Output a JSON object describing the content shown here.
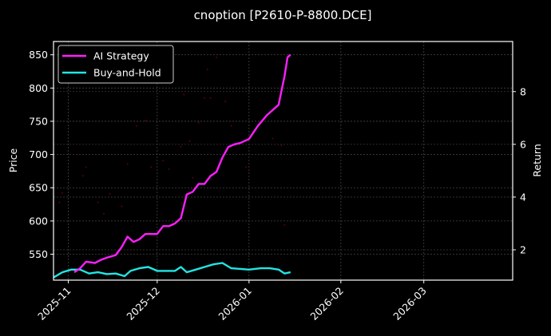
{
  "chart_data": {
    "type": "line",
    "title": "cnoption [P2610-P-8800.DCE]",
    "xlabel": "",
    "ylabel": "Price",
    "ylabel_right": "Return",
    "xlim": [
      "2025-10-27",
      "2026-03-31"
    ],
    "ylim": [
      511,
      870
    ],
    "ylim_right": [
      0.85,
      9.9
    ],
    "grid": true,
    "legend_position": "upper left",
    "x_ticks": [
      "2025-11",
      "2025-12",
      "2026-01",
      "2026-02",
      "2026-03"
    ],
    "y_ticks": [
      550,
      600,
      650,
      700,
      750,
      800,
      850
    ],
    "y_ticks_right": [
      2,
      4,
      6,
      8
    ],
    "series": [
      {
        "name": "AI Strategy",
        "axis": "right",
        "color": "#ff1fff",
        "x": [
          "2025-11-03",
          "2025-11-05",
          "2025-11-07",
          "2025-11-10",
          "2025-11-12",
          "2025-11-14",
          "2025-11-17",
          "2025-11-19",
          "2025-11-21",
          "2025-11-23",
          "2025-11-25",
          "2025-11-27",
          "2025-11-29",
          "2025-12-01",
          "2025-12-03",
          "2025-12-05",
          "2025-12-07",
          "2025-12-09",
          "2025-12-11",
          "2025-12-13",
          "2025-12-15",
          "2025-12-17",
          "2025-12-19",
          "2025-12-21",
          "2025-12-23",
          "2025-12-25",
          "2025-12-27",
          "2025-12-29",
          "2026-01-01",
          "2026-01-04",
          "2026-01-07",
          "2026-01-09",
          "2026-01-11",
          "2026-01-13",
          "2026-01-14",
          "2026-01-15"
        ],
        "values": [
          1.15,
          1.3,
          1.55,
          1.5,
          1.62,
          1.7,
          1.8,
          2.1,
          2.5,
          2.3,
          2.4,
          2.6,
          2.6,
          2.6,
          2.9,
          2.9,
          3.0,
          3.2,
          4.1,
          4.2,
          4.5,
          4.5,
          4.8,
          4.95,
          5.5,
          5.9,
          6.0,
          6.05,
          6.2,
          6.7,
          7.1,
          7.3,
          7.5,
          8.6,
          9.3,
          9.4
        ]
      },
      {
        "name": "Buy-and-Hold",
        "axis": "right",
        "color": "#22e5e5",
        "x": [
          "2025-10-27",
          "2025-10-30",
          "2025-11-02",
          "2025-11-05",
          "2025-11-08",
          "2025-11-11",
          "2025-11-14",
          "2025-11-17",
          "2025-11-20",
          "2025-11-22",
          "2025-11-25",
          "2025-11-28",
          "2025-12-01",
          "2025-12-04",
          "2025-12-07",
          "2025-12-09",
          "2025-12-11",
          "2025-12-14",
          "2025-12-17",
          "2025-12-20",
          "2025-12-23",
          "2025-12-26",
          "2026-01-01",
          "2026-01-05",
          "2026-01-08",
          "2026-01-11",
          "2026-01-13",
          "2026-01-15"
        ],
        "values": [
          0.95,
          1.15,
          1.25,
          1.25,
          1.1,
          1.15,
          1.08,
          1.1,
          1.0,
          1.2,
          1.3,
          1.35,
          1.2,
          1.2,
          1.2,
          1.35,
          1.15,
          1.25,
          1.35,
          1.45,
          1.5,
          1.3,
          1.25,
          1.3,
          1.3,
          1.25,
          1.1,
          1.15
        ]
      }
    ],
    "background_scatter": {
      "color": "#5a0010",
      "note": "faint dark-red price dots scattered across Nov–Jan",
      "approx_points_price": [
        [
          "2025-10-29",
          628
        ],
        [
          "2025-10-30",
          642
        ],
        [
          "2025-11-04",
          700
        ],
        [
          "2025-11-06",
          668
        ],
        [
          "2025-11-07",
          681
        ],
        [
          "2025-11-11",
          628
        ],
        [
          "2025-11-13",
          611
        ],
        [
          "2025-11-15",
          641
        ],
        [
          "2025-11-19",
          622
        ],
        [
          "2025-11-21",
          686
        ],
        [
          "2025-11-24",
          743
        ],
        [
          "2025-11-27",
          751
        ],
        [
          "2025-11-29",
          681
        ],
        [
          "2025-12-03",
          691
        ],
        [
          "2025-12-05",
          678
        ],
        [
          "2025-12-09",
          712
        ],
        [
          "2025-12-10",
          790
        ],
        [
          "2025-12-12",
          720
        ],
        [
          "2025-12-13",
          665
        ],
        [
          "2025-12-15",
          748
        ],
        [
          "2025-12-17",
          785
        ],
        [
          "2025-12-18",
          828
        ],
        [
          "2025-12-19",
          785
        ],
        [
          "2025-12-21",
          846
        ],
        [
          "2025-12-24",
          780
        ],
        [
          "2025-12-26",
          743
        ],
        [
          "2025-12-31",
          681
        ],
        [
          "2026-01-01",
          676
        ],
        [
          "2026-01-09",
          724
        ],
        [
          "2026-01-12",
          714
        ],
        [
          "2026-01-13",
          594
        ]
      ]
    }
  },
  "legend": {
    "items": [
      {
        "label": "AI Strategy",
        "color": "#ff1fff"
      },
      {
        "label": "Buy-and-Hold",
        "color": "#22e5e5"
      }
    ]
  }
}
